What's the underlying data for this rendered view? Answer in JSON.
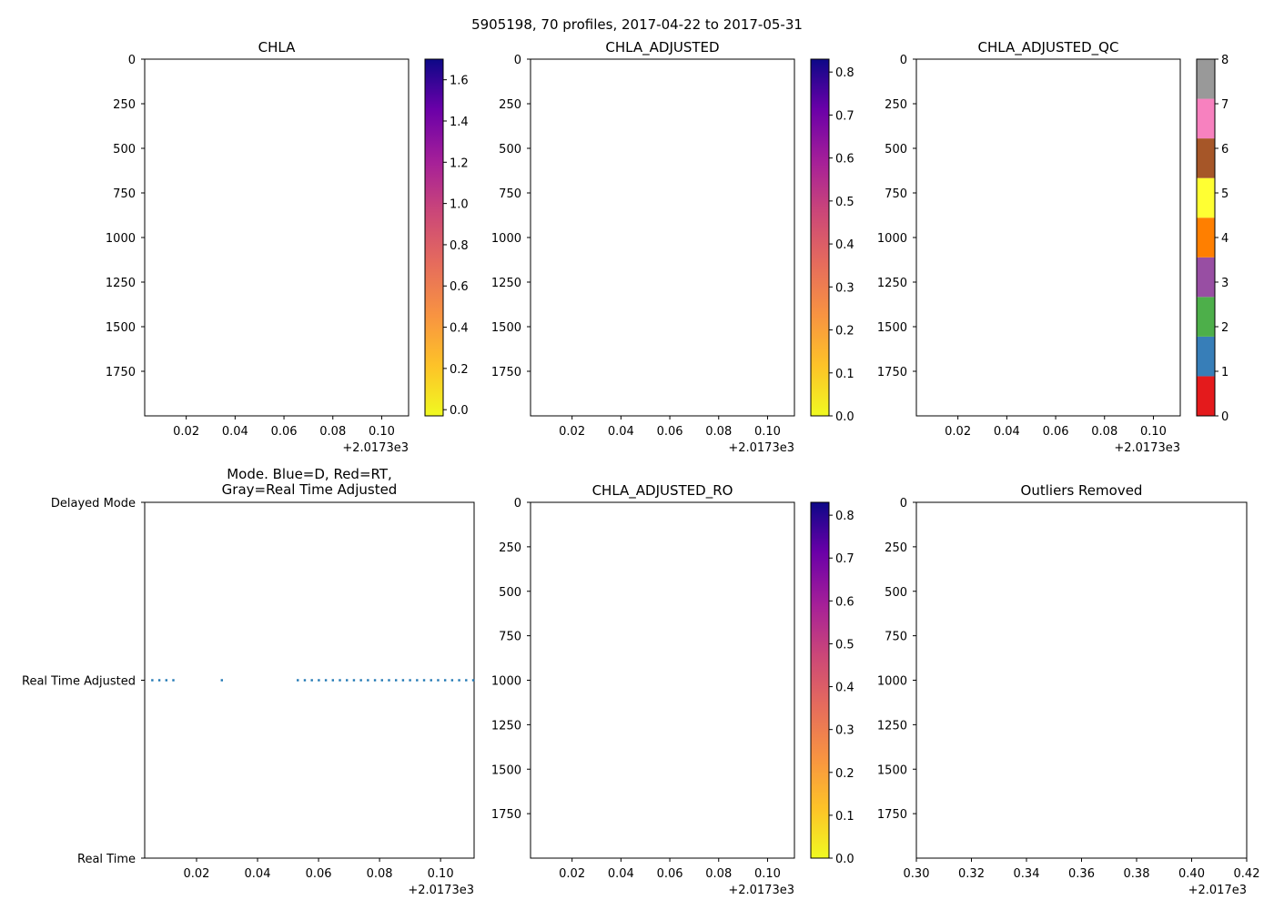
{
  "figure": {
    "suptitle": "5905198, 70 profiles, 2017-04-22 to 2017-05-31"
  },
  "chart_data": [
    {
      "id": "chla",
      "type": "heatmap",
      "title": "CHLA",
      "xlim": [
        0.003,
        0.111
      ],
      "x_ticks": [
        0.02,
        0.04,
        0.06,
        0.08,
        0.1
      ],
      "x_tick_labels": [
        "0.02",
        "0.04",
        "0.06",
        "0.08",
        "0.10"
      ],
      "x_offset_label": "+2.0173e3",
      "ylim": [
        2000,
        0
      ],
      "y_ticks": [
        0,
        250,
        500,
        750,
        1000,
        1250,
        1500,
        1750
      ],
      "y_tick_labels": [
        "0",
        "250",
        "500",
        "750",
        "1000",
        "1250",
        "1500",
        "1750"
      ],
      "values": [],
      "colorbar": {
        "colormap": "plasma_r",
        "range": [
          -0.03,
          1.7
        ],
        "ticks": [
          0.0,
          0.2,
          0.4,
          0.6,
          0.8,
          1.0,
          1.2,
          1.4,
          1.6
        ],
        "tick_labels": [
          "0.0",
          "0.2",
          "0.4",
          "0.6",
          "0.8",
          "1.0",
          "1.2",
          "1.4",
          "1.6"
        ]
      }
    },
    {
      "id": "chla_adjusted",
      "type": "heatmap",
      "title": "CHLA_ADJUSTED",
      "xlim": [
        0.003,
        0.111
      ],
      "x_ticks": [
        0.02,
        0.04,
        0.06,
        0.08,
        0.1
      ],
      "x_tick_labels": [
        "0.02",
        "0.04",
        "0.06",
        "0.08",
        "0.10"
      ],
      "x_offset_label": "+2.0173e3",
      "ylim": [
        2000,
        0
      ],
      "y_ticks": [
        0,
        250,
        500,
        750,
        1000,
        1250,
        1500,
        1750
      ],
      "y_tick_labels": [
        "0",
        "250",
        "500",
        "750",
        "1000",
        "1250",
        "1500",
        "1750"
      ],
      "values": [],
      "colorbar": {
        "colormap": "plasma_r",
        "range": [
          0.0,
          0.83
        ],
        "ticks": [
          0.0,
          0.1,
          0.2,
          0.3,
          0.4,
          0.5,
          0.6,
          0.7,
          0.8
        ],
        "tick_labels": [
          "0.0",
          "0.1",
          "0.2",
          "0.3",
          "0.4",
          "0.5",
          "0.6",
          "0.7",
          "0.8"
        ]
      }
    },
    {
      "id": "chla_adjusted_qc",
      "type": "heatmap",
      "title": "CHLA_ADJUSTED_QC",
      "xlim": [
        0.003,
        0.111
      ],
      "x_ticks": [
        0.02,
        0.04,
        0.06,
        0.08,
        0.1
      ],
      "x_tick_labels": [
        "0.02",
        "0.04",
        "0.06",
        "0.08",
        "0.10"
      ],
      "x_offset_label": "+2.0173e3",
      "ylim": [
        2000,
        0
      ],
      "y_ticks": [
        0,
        250,
        500,
        750,
        1000,
        1250,
        1500,
        1750
      ],
      "y_tick_labels": [
        "0",
        "250",
        "500",
        "750",
        "1000",
        "1250",
        "1500",
        "1750"
      ],
      "values": [],
      "colorbar": {
        "colormap": "Set1_discrete",
        "range": [
          0,
          8
        ],
        "ticks": [
          0,
          1,
          2,
          3,
          4,
          5,
          6,
          7,
          8
        ],
        "tick_labels": [
          "0",
          "1",
          "2",
          "3",
          "4",
          "5",
          "6",
          "7",
          "8"
        ],
        "discrete_colors": [
          "#e41a1c",
          "#377eb8",
          "#4daf4a",
          "#984ea3",
          "#ff7f00",
          "#ffff33",
          "#a65628",
          "#f781bf",
          "#999999"
        ]
      }
    },
    {
      "id": "mode",
      "type": "scatter",
      "title_lines": [
        "Mode. Blue=D, Red=RT,",
        "Gray=Real Time Adjusted"
      ],
      "xlim": [
        0.003,
        0.111
      ],
      "x_ticks": [
        0.02,
        0.04,
        0.06,
        0.08,
        0.1
      ],
      "x_tick_labels": [
        "0.02",
        "0.04",
        "0.06",
        "0.08",
        "0.10"
      ],
      "x_offset_label": "+2.0173e3",
      "y_categories": [
        "Real Time",
        "Real Time Adjusted",
        "Delayed Mode"
      ],
      "ylim": [
        0,
        2
      ],
      "marker_color": "#1f77b4",
      "points": [
        {
          "x": 0.0055,
          "y": 1
        },
        {
          "x": 0.0078,
          "y": 1
        },
        {
          "x": 0.0101,
          "y": 1
        },
        {
          "x": 0.0124,
          "y": 1
        },
        {
          "x": 0.0283,
          "y": 1
        },
        {
          "x": 0.0532,
          "y": 1
        },
        {
          "x": 0.0555,
          "y": 1
        },
        {
          "x": 0.0578,
          "y": 1
        },
        {
          "x": 0.0601,
          "y": 1
        },
        {
          "x": 0.0624,
          "y": 1
        },
        {
          "x": 0.0647,
          "y": 1
        },
        {
          "x": 0.067,
          "y": 1
        },
        {
          "x": 0.0693,
          "y": 1
        },
        {
          "x": 0.0716,
          "y": 1
        },
        {
          "x": 0.0739,
          "y": 1
        },
        {
          "x": 0.0762,
          "y": 1
        },
        {
          "x": 0.0785,
          "y": 1
        },
        {
          "x": 0.0808,
          "y": 1
        },
        {
          "x": 0.0831,
          "y": 1
        },
        {
          "x": 0.0854,
          "y": 1
        },
        {
          "x": 0.0877,
          "y": 1
        },
        {
          "x": 0.09,
          "y": 1
        },
        {
          "x": 0.0923,
          "y": 1
        },
        {
          "x": 0.0946,
          "y": 1
        },
        {
          "x": 0.0969,
          "y": 1
        },
        {
          "x": 0.0992,
          "y": 1
        },
        {
          "x": 0.1015,
          "y": 1
        },
        {
          "x": 0.1038,
          "y": 1
        },
        {
          "x": 0.1061,
          "y": 1
        },
        {
          "x": 0.1084,
          "y": 1
        },
        {
          "x": 0.1107,
          "y": 1
        }
      ]
    },
    {
      "id": "chla_adjusted_ro",
      "type": "heatmap",
      "title": "CHLA_ADJUSTED_RO",
      "xlim": [
        0.003,
        0.111
      ],
      "x_ticks": [
        0.02,
        0.04,
        0.06,
        0.08,
        0.1
      ],
      "x_tick_labels": [
        "0.02",
        "0.04",
        "0.06",
        "0.08",
        "0.10"
      ],
      "x_offset_label": "+2.0173e3",
      "ylim": [
        2000,
        0
      ],
      "y_ticks": [
        0,
        250,
        500,
        750,
        1000,
        1250,
        1500,
        1750
      ],
      "y_tick_labels": [
        "0",
        "250",
        "500",
        "750",
        "1000",
        "1250",
        "1500",
        "1750"
      ],
      "values": [],
      "colorbar": {
        "colormap": "plasma_r",
        "range": [
          0.0,
          0.83
        ],
        "ticks": [
          0.0,
          0.1,
          0.2,
          0.3,
          0.4,
          0.5,
          0.6,
          0.7,
          0.8
        ],
        "tick_labels": [
          "0.0",
          "0.1",
          "0.2",
          "0.3",
          "0.4",
          "0.5",
          "0.6",
          "0.7",
          "0.8"
        ]
      }
    },
    {
      "id": "outliers_removed",
      "type": "scatter",
      "title": "Outliers Removed",
      "xlim": [
        0.3,
        0.42
      ],
      "x_ticks": [
        0.3,
        0.32,
        0.34,
        0.36,
        0.38,
        0.4,
        0.42
      ],
      "x_tick_labels": [
        "0.30",
        "0.32",
        "0.34",
        "0.36",
        "0.38",
        "0.40",
        "0.42"
      ],
      "x_offset_label": "+2.017e3",
      "ylim": [
        2000,
        0
      ],
      "y_ticks": [
        0,
        250,
        500,
        750,
        1000,
        1250,
        1500,
        1750
      ],
      "y_tick_labels": [
        "0",
        "250",
        "500",
        "750",
        "1000",
        "1250",
        "1500",
        "1750"
      ],
      "points": []
    }
  ]
}
